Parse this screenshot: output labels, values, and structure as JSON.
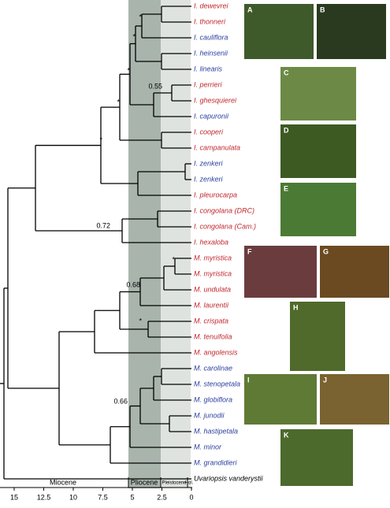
{
  "taxa": [
    {
      "name": "I. dewevrei",
      "color": "#c0282d"
    },
    {
      "name": "I. thonneri",
      "color": "#c0282d"
    },
    {
      "name": "I. cauliflora",
      "color": "#2b3f9e"
    },
    {
      "name": "I. heinsenii",
      "color": "#2b3f9e"
    },
    {
      "name": "I. linearis",
      "color": "#2b3f9e"
    },
    {
      "name": "I. perrieri",
      "color": "#c0282d"
    },
    {
      "name": "I. ghesquierei",
      "color": "#c0282d"
    },
    {
      "name": "I. capuronii",
      "color": "#2b3f9e"
    },
    {
      "name": "I. cooperi",
      "color": "#c0282d"
    },
    {
      "name": "I. campanulata",
      "color": "#c0282d"
    },
    {
      "name": "I. zenkeri",
      "color": "#2b3f9e"
    },
    {
      "name": "I. zenkeri",
      "color": "#2b3f9e"
    },
    {
      "name": "I. pleurocarpa",
      "color": "#c0282d"
    },
    {
      "name": "I. congolana (DRC)",
      "color": "#c0282d"
    },
    {
      "name": "I. congolana (Cam.)",
      "color": "#c0282d"
    },
    {
      "name": "I. hexaloba",
      "color": "#c0282d"
    },
    {
      "name": "M. myristica",
      "color": "#c0282d"
    },
    {
      "name": "M. myristica",
      "color": "#c0282d"
    },
    {
      "name": "M. undulata",
      "color": "#c0282d"
    },
    {
      "name": "M. laurentii",
      "color": "#c0282d"
    },
    {
      "name": "M. crispata",
      "color": "#c0282d"
    },
    {
      "name": "M. tenuifolia",
      "color": "#c0282d"
    },
    {
      "name": "M. angolensis",
      "color": "#c0282d"
    },
    {
      "name": "M. carolinae",
      "color": "#2b3f9e"
    },
    {
      "name": "M. stenopetala",
      "color": "#2b3f9e"
    },
    {
      "name": "M. globiflora",
      "color": "#2b3f9e"
    },
    {
      "name": "M. junodii",
      "color": "#2b3f9e"
    },
    {
      "name": "M. hastipetala",
      "color": "#2b3f9e"
    },
    {
      "name": "M. minor",
      "color": "#2b3f9e"
    },
    {
      "name": "M. grandidieri",
      "color": "#2b3f9e"
    },
    {
      "name": "Uvariopsis vanderystii",
      "color": "#000000"
    }
  ],
  "support_values": [
    "*",
    "*",
    "*",
    "0.55",
    "*",
    "0.72",
    "*",
    "*",
    "0.68",
    "*",
    "0.66"
  ],
  "epochs": [
    "Miocene",
    "Pliocene",
    "Pleistocene",
    "Hol."
  ],
  "axis": {
    "ticks": [
      15,
      12.5,
      10,
      7.5,
      5,
      2.5,
      0
    ]
  },
  "panels": [
    "A",
    "B",
    "C",
    "D",
    "E",
    "F",
    "G",
    "H",
    "I",
    "J",
    "K"
  ]
}
